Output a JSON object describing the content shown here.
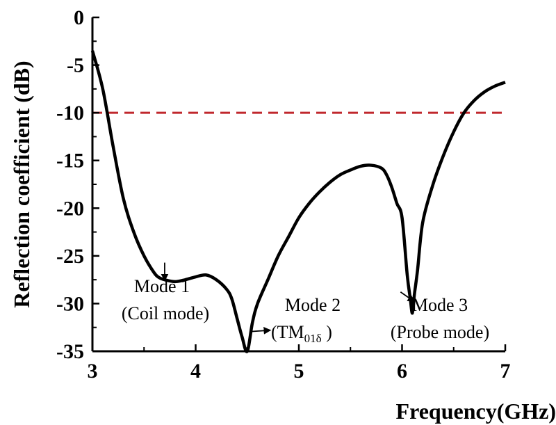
{
  "chart_data": {
    "type": "line",
    "xlabel": "Frequency(GHz)",
    "ylabel": "Reflection coefficient (dB)",
    "xlim": [
      3,
      7
    ],
    "ylim": [
      -35,
      0
    ],
    "x_ticks": [
      "3",
      "4",
      "5",
      "6",
      "7"
    ],
    "y_ticks": [
      "0",
      "-5",
      "-10",
      "-15",
      "-20",
      "-25",
      "-30",
      "-35"
    ],
    "threshold": {
      "value": -10,
      "color": "#c0282d",
      "style": "dashed"
    },
    "series": [
      {
        "name": "Reflection coefficient",
        "color": "#000000",
        "x": [
          3.0,
          3.1,
          3.2,
          3.3,
          3.4,
          3.5,
          3.6,
          3.65,
          3.7,
          3.8,
          3.9,
          4.0,
          4.1,
          4.2,
          4.3,
          4.35,
          4.4,
          4.45,
          4.5,
          4.55,
          4.6,
          4.7,
          4.8,
          4.9,
          5.0,
          5.1,
          5.2,
          5.3,
          5.4,
          5.5,
          5.6,
          5.7,
          5.8,
          5.85,
          5.9,
          5.95,
          6.0,
          6.05,
          6.08,
          6.1,
          6.12,
          6.15,
          6.2,
          6.3,
          6.4,
          6.5,
          6.6,
          6.7,
          6.8,
          6.9,
          7.0
        ],
        "y": [
          -3.5,
          -7.5,
          -13.5,
          -19.0,
          -22.5,
          -25.0,
          -26.8,
          -27.3,
          -27.5,
          -27.7,
          -27.5,
          -27.2,
          -27.0,
          -27.5,
          -28.5,
          -29.5,
          -31.5,
          -33.5,
          -35.0,
          -32.0,
          -30.0,
          -27.5,
          -25.0,
          -23.0,
          -21.0,
          -19.5,
          -18.3,
          -17.3,
          -16.5,
          -16.0,
          -15.6,
          -15.5,
          -15.8,
          -16.5,
          -17.8,
          -19.5,
          -21.0,
          -27.0,
          -29.5,
          -31.0,
          -29.0,
          -26.5,
          -21.5,
          -17.5,
          -14.5,
          -12.0,
          -10.0,
          -8.7,
          -7.8,
          -7.2,
          -6.8
        ]
      }
    ],
    "annotations": [
      {
        "lines": [
          "Mode 1",
          "(Coil mode)"
        ],
        "x": 3.7,
        "y": -26.0,
        "arrow": "down"
      },
      {
        "lines": [
          "Mode 2"
        ],
        "sub_line": {
          "prefix": "(TM",
          "subscript": "01δ",
          "suffix": " )"
        },
        "x": 4.55,
        "y": -32.5,
        "arrow": "right"
      },
      {
        "lines": [
          "Mode 3",
          "(Probe mode)"
        ],
        "x": 6.12,
        "y": -29.0,
        "arrow": "right-down"
      }
    ]
  }
}
